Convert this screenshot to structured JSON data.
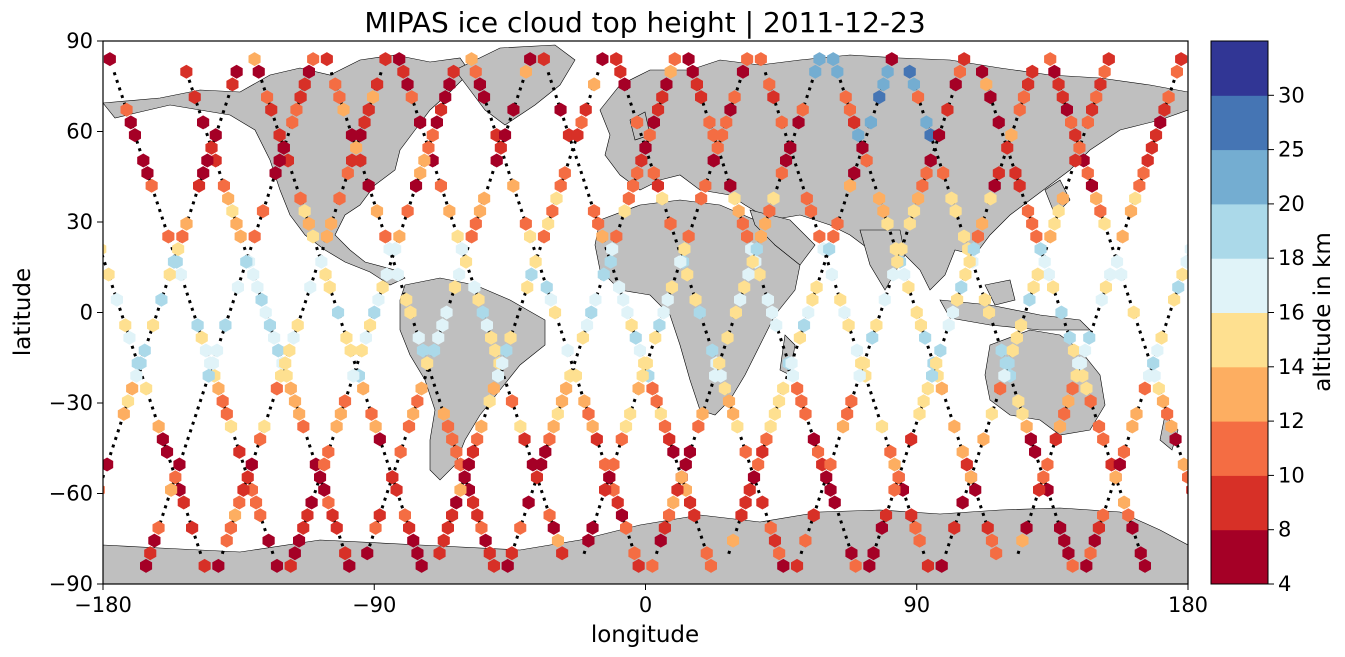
{
  "chart_data": {
    "type": "scatter",
    "title": "MIPAS ice cloud top height | 2011-12-23",
    "xlabel": "longitude",
    "ylabel": "latitude",
    "xlim": [
      -180,
      180
    ],
    "ylim": [
      -90,
      90
    ],
    "x_ticks": [
      "−180",
      "−90",
      "0",
      "90",
      "180"
    ],
    "y_ticks": [
      "−90",
      "−60",
      "−30",
      "0",
      "30",
      "60",
      "90"
    ],
    "grid": false,
    "legend": "none",
    "marker": "hexagon",
    "orbit_track_style": "black dotted line",
    "land_color": "#bfbfbf",
    "ocean_color": "#ffffff",
    "colorbar": {
      "label": "altitude in km",
      "placement": "right",
      "boundaries": [
        4,
        8,
        10,
        12,
        14,
        16,
        18,
        20,
        25,
        30
      ],
      "tick_labels": [
        "4",
        "8",
        "10",
        "12",
        "14",
        "16",
        "18",
        "20",
        "25",
        "30"
      ],
      "colors": [
        "#a50026",
        "#d73027",
        "#f46d43",
        "#fdae61",
        "#fee090",
        "#e0f3f8",
        "#abd9e9",
        "#74add1",
        "#4575b4",
        "#313695"
      ]
    },
    "orbits_descending_lon_at_equator": [
      -174,
      -150,
      -126,
      -102,
      -78,
      -54,
      -30,
      -6,
      18,
      42,
      66,
      90,
      114,
      138,
      162
    ],
    "orbits_ascending_lon_at_equator": [
      -162,
      -138,
      -114,
      -90,
      -66,
      -42,
      -18,
      6,
      30,
      54,
      78,
      102,
      126,
      150,
      174
    ],
    "points_summary": "Hexagon markers placed along satellite orbit tracks; tropical points (±25° lat) mostly 14–18 km (yellow/light blue), mid/high latitudes mostly 8–12 km (red/orange), some 20–25 km (blue) over northern Siberia near 60–90°E, 60–80°N."
  }
}
